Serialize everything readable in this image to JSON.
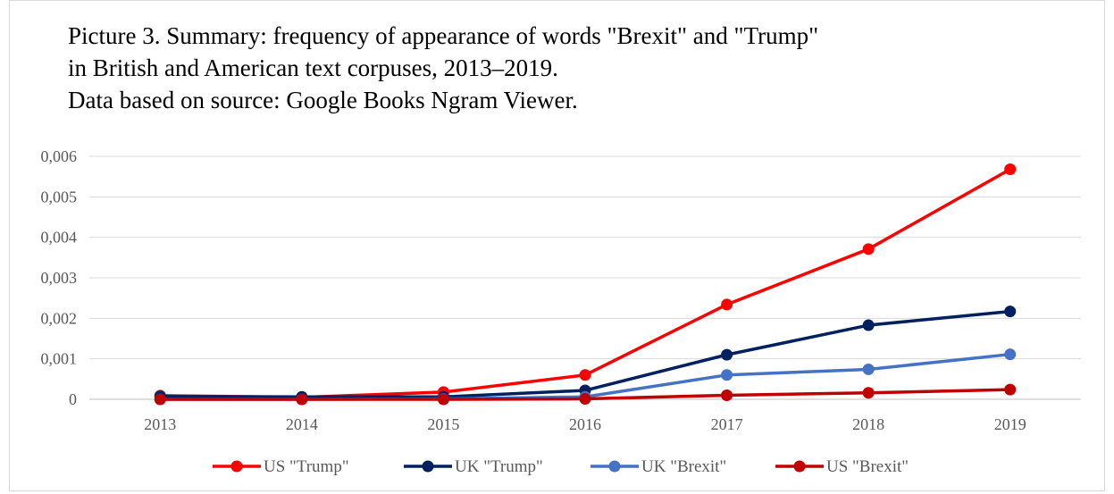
{
  "title_lines": [
    "Picture 3. Summary: frequency of appearance of words \"Brexit\" and \"Trump\"",
    "in British and American text corpuses, 2013–2019.",
    "Data based on source: Google Books Ngram Viewer."
  ],
  "chart_data": {
    "type": "line",
    "title": "Picture 3. Summary: frequency of appearance of words \"Brexit\" and \"Trump\" in British and American text corpuses, 2013–2019. Data based on source: Google Books Ngram Viewer.",
    "x": [
      "2013",
      "2014",
      "2015",
      "2016",
      "2017",
      "2018",
      "2019"
    ],
    "ylim": [
      0,
      0.006
    ],
    "yticks": [
      "0",
      "0,001",
      "0,002",
      "0,003",
      "0,004",
      "0,005",
      "0,006"
    ],
    "grid": true,
    "legend_position": "bottom",
    "series": [
      {
        "name": "US \"Trump\"",
        "color": "#ff0000",
        "values": [
          9e-05,
          5e-05,
          0.00018,
          0.0006,
          0.00234,
          0.00371,
          0.00568
        ]
      },
      {
        "name": "UK \"Trump\"",
        "color": "#002060",
        "values": [
          7e-05,
          6e-05,
          6e-05,
          0.00022,
          0.0011,
          0.00183,
          0.00217
        ]
      },
      {
        "name": "UK \"Brexit\"",
        "color": "#4472c4",
        "values": [
          0.0,
          0.0,
          1e-05,
          6e-05,
          0.0006,
          0.00074,
          0.00111
        ]
      },
      {
        "name": "US \"Brexit\"",
        "color": "#c00000",
        "values": [
          0.0,
          0.0,
          0.0,
          1e-05,
          0.0001,
          0.00016,
          0.00024
        ]
      }
    ]
  }
}
